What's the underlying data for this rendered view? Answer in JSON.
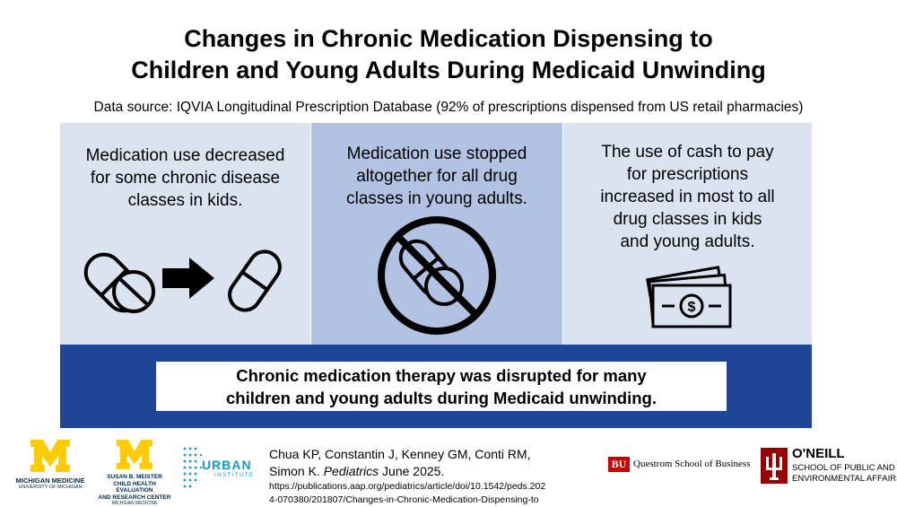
{
  "title": {
    "line1": "Changes in Chronic Medication Dispensing to",
    "line2": "Children and Young Adults During Medicaid Unwinding"
  },
  "source": "Data source: IQVIA Longitudinal Prescription Database (92% of prescriptions dispensed from US retail pharmacies)",
  "panels": [
    {
      "lines": [
        "Medication use decreased",
        "for some chronic disease",
        "classes in kids."
      ],
      "icon": "pills-decrease-icon"
    },
    {
      "lines": [
        "Medication use stopped",
        "altogether for all drug",
        "classes in young adults."
      ],
      "icon": "no-pills-icon"
    },
    {
      "lines": [
        "The use of cash to pay",
        "for prescriptions",
        "increased in most to all",
        "drug classes in kids",
        "and young adults."
      ],
      "icon": "cash-icon"
    }
  ],
  "conclusion": {
    "line1": "Chronic medication therapy was disrupted for many",
    "line2": "children and young adults during Medicaid unwinding."
  },
  "citation": {
    "line1": "Chua KP, Constantin J, Kenney GM, Conti RM,",
    "line2_authors": "Simon K. ",
    "journal": "Pediatrics",
    "date": " June 2025.",
    "url_line1": "https://publications.aap.org/pediatrics/article/doi/10.1542/peds.202",
    "url_line2": "4-070380/201807/Changes-in-Chronic-Medication-Dispensing-to"
  },
  "logos": {
    "michigan_line1": "MICHIGAN MEDICINE",
    "michigan_line2": "UNIVERSITY OF MICHIGAN",
    "meister_line1": "SUSAN B. MEISTER",
    "meister_line2": "CHILD HEALTH EVALUATION",
    "meister_line3": "AND RESEARCH CENTER",
    "meister_line4": "MICHIGAN MEDICINE",
    "urban_line1": "URBAN",
    "urban_line2": "INSTITUTE",
    "bu_mark": "BU",
    "bu_text": "Questrom School of Business",
    "oneill_line1": "O'NEILL",
    "oneill_line2": "SCHOOL OF PUBLIC AND",
    "oneill_line3": "ENVIRONMENTAL AFFAIRS"
  },
  "colors": {
    "band": "#1f4596",
    "panel_light": "#dbe2f0",
    "panel_mid": "#b2c2e2",
    "maize": "#ffcb05",
    "iu_crimson": "#990000",
    "bu_red": "#cc0000"
  }
}
